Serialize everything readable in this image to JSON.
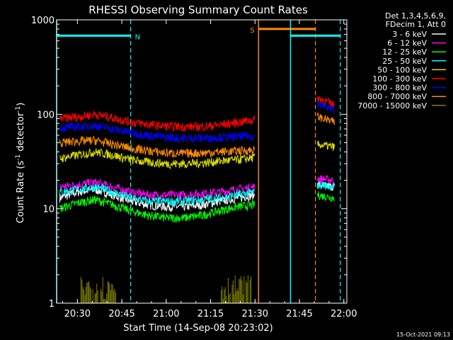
{
  "chart_data": {
    "type": "line",
    "title": "RHESSI Observing Summary Count Rates",
    "xlabel": "Start Time (14-Sep-08 20:23:02)",
    "ylabel_main": "Count Rate (s",
    "ylabel_sup1": "-1",
    "ylabel_mid": " detector",
    "ylabel_sup2": "-1",
    "ylabel_end": ")",
    "yscale": "log",
    "ylim": [
      1,
      1000
    ],
    "xlim_min": [
      20.383,
      22.017
    ],
    "x_ticks": [
      {
        "label": "20:30",
        "value": 20.5
      },
      {
        "label": "20:45",
        "value": 20.75
      },
      {
        "label": "21:00",
        "value": 21.0
      },
      {
        "label": "21:15",
        "value": 21.25
      },
      {
        "label": "21:30",
        "value": 21.5
      },
      {
        "label": "21:45",
        "value": 21.75
      },
      {
        "label": "22:00",
        "value": 22.0
      }
    ],
    "y_ticks": [
      {
        "label": "1",
        "value": 1
      },
      {
        "label": "10",
        "value": 10
      },
      {
        "label": "100",
        "value": 100
      },
      {
        "label": "1000",
        "value": 1000
      }
    ],
    "legend_header": [
      "Det 1,3,4,5,6,9,",
      "FDecim 1, Att 0"
    ],
    "legend_placement": "right",
    "data_gap_hours": [
      21.52,
      21.84
    ],
    "series": [
      {
        "name": "3 - 6 keV",
        "color": "#ffffff",
        "values": [
          [
            20.4,
            13
          ],
          [
            20.5,
            15
          ],
          [
            20.6,
            16
          ],
          [
            20.7,
            14
          ],
          [
            20.8,
            12
          ],
          [
            20.9,
            11
          ],
          [
            21.0,
            10.5
          ],
          [
            21.1,
            10.5
          ],
          [
            21.2,
            11
          ],
          [
            21.3,
            12
          ],
          [
            21.4,
            13
          ],
          [
            21.5,
            14
          ],
          [
            21.85,
            18
          ],
          [
            21.95,
            17
          ]
        ]
      },
      {
        "name": "6 - 12 keV",
        "color": "#ff00ff",
        "values": [
          [
            20.4,
            17
          ],
          [
            20.5,
            18
          ],
          [
            20.6,
            19
          ],
          [
            20.7,
            17
          ],
          [
            20.8,
            15
          ],
          [
            20.9,
            14
          ],
          [
            21.0,
            14
          ],
          [
            21.1,
            14
          ],
          [
            21.2,
            14.5
          ],
          [
            21.3,
            15
          ],
          [
            21.4,
            16
          ],
          [
            21.5,
            17
          ],
          [
            21.85,
            21
          ],
          [
            21.95,
            20
          ]
        ]
      },
      {
        "name": "12 - 25 keV",
        "color": "#00ff00",
        "values": [
          [
            20.4,
            10
          ],
          [
            20.5,
            11.5
          ],
          [
            20.6,
            12.5
          ],
          [
            20.7,
            11
          ],
          [
            20.8,
            9.5
          ],
          [
            20.9,
            8.5
          ],
          [
            21.0,
            8
          ],
          [
            21.1,
            8
          ],
          [
            21.2,
            8.5
          ],
          [
            21.3,
            9.5
          ],
          [
            21.4,
            10.5
          ],
          [
            21.5,
            11
          ],
          [
            21.85,
            14
          ],
          [
            21.95,
            13
          ]
        ]
      },
      {
        "name": "25 - 50 keV",
        "color": "#00ffff",
        "values": [
          [
            20.4,
            15
          ],
          [
            20.5,
            16
          ],
          [
            20.6,
            17
          ],
          [
            20.7,
            15
          ],
          [
            20.8,
            13
          ],
          [
            20.9,
            12
          ],
          [
            21.0,
            12
          ],
          [
            21.1,
            12
          ],
          [
            21.2,
            12.5
          ],
          [
            21.3,
            13
          ],
          [
            21.4,
            14
          ],
          [
            21.5,
            15
          ],
          [
            21.85,
            18
          ],
          [
            21.95,
            17
          ]
        ]
      },
      {
        "name": "50 - 100 keV",
        "color": "#dddd00",
        "values": [
          [
            20.4,
            34
          ],
          [
            20.5,
            37
          ],
          [
            20.6,
            40
          ],
          [
            20.7,
            37
          ],
          [
            20.8,
            33
          ],
          [
            20.9,
            31
          ],
          [
            21.0,
            30
          ],
          [
            21.1,
            30
          ],
          [
            21.2,
            30.5
          ],
          [
            21.3,
            32
          ],
          [
            21.4,
            33
          ],
          [
            21.5,
            35
          ],
          [
            21.85,
            48
          ],
          [
            21.95,
            45
          ]
        ]
      },
      {
        "name": "100 - 300 keV",
        "color": "#ff0000",
        "values": [
          [
            20.4,
            90
          ],
          [
            20.5,
            94
          ],
          [
            20.6,
            100
          ],
          [
            20.7,
            92
          ],
          [
            20.8,
            83
          ],
          [
            20.9,
            78
          ],
          [
            21.0,
            75
          ],
          [
            21.1,
            74
          ],
          [
            21.2,
            74
          ],
          [
            21.3,
            77
          ],
          [
            21.4,
            82
          ],
          [
            21.5,
            88
          ],
          [
            21.85,
            150
          ],
          [
            21.95,
            125
          ]
        ]
      },
      {
        "name": "300 - 800 keV",
        "color": "#0000ff",
        "values": [
          [
            20.4,
            72
          ],
          [
            20.5,
            74
          ],
          [
            20.6,
            76
          ],
          [
            20.7,
            70
          ],
          [
            20.8,
            64
          ],
          [
            20.9,
            60
          ],
          [
            21.0,
            57
          ],
          [
            21.1,
            56
          ],
          [
            21.2,
            56
          ],
          [
            21.3,
            57
          ],
          [
            21.4,
            58
          ],
          [
            21.5,
            59
          ],
          [
            21.85,
            130
          ],
          [
            21.95,
            110
          ]
        ]
      },
      {
        "name": "800 - 7000 keV",
        "color": "#ff8c00",
        "values": [
          [
            20.4,
            50
          ],
          [
            20.5,
            52
          ],
          [
            20.6,
            53
          ],
          [
            20.7,
            48
          ],
          [
            20.8,
            44
          ],
          [
            20.9,
            41
          ],
          [
            21.0,
            39
          ],
          [
            21.1,
            38.5
          ],
          [
            21.2,
            39
          ],
          [
            21.3,
            40
          ],
          [
            21.4,
            41
          ],
          [
            21.5,
            42
          ],
          [
            21.85,
            95
          ],
          [
            21.95,
            82
          ]
        ]
      },
      {
        "name": "7000 - 15000 keV",
        "color": "#808000",
        "values": [
          [
            20.52,
            1
          ],
          [
            20.52,
            2
          ],
          [
            20.72,
            2
          ],
          [
            20.72,
            1
          ],
          [
            21.31,
            1
          ],
          [
            21.31,
            2
          ],
          [
            21.48,
            2
          ],
          [
            21.48,
            1
          ]
        ]
      }
    ],
    "markers": [
      {
        "label": "N",
        "color": "#00ffff",
        "solid_x": 20.383,
        "dashed_x": 20.8,
        "bar_x": [
          20.383,
          20.8
        ],
        "bar_y": 680
      },
      {
        "label": "S",
        "color": "#ff8c00",
        "solid_x": 21.52,
        "dashed_x": 21.84,
        "bar_x": [
          21.52,
          21.84
        ],
        "bar_y": 800
      },
      {
        "label": "",
        "color": "#00ffff",
        "solid_x": 21.7,
        "dashed_x": 21.98,
        "bar_x": [
          21.7,
          21.98
        ],
        "bar_y": 680
      }
    ],
    "footer_date": "15-Oct-2021 09:13"
  }
}
